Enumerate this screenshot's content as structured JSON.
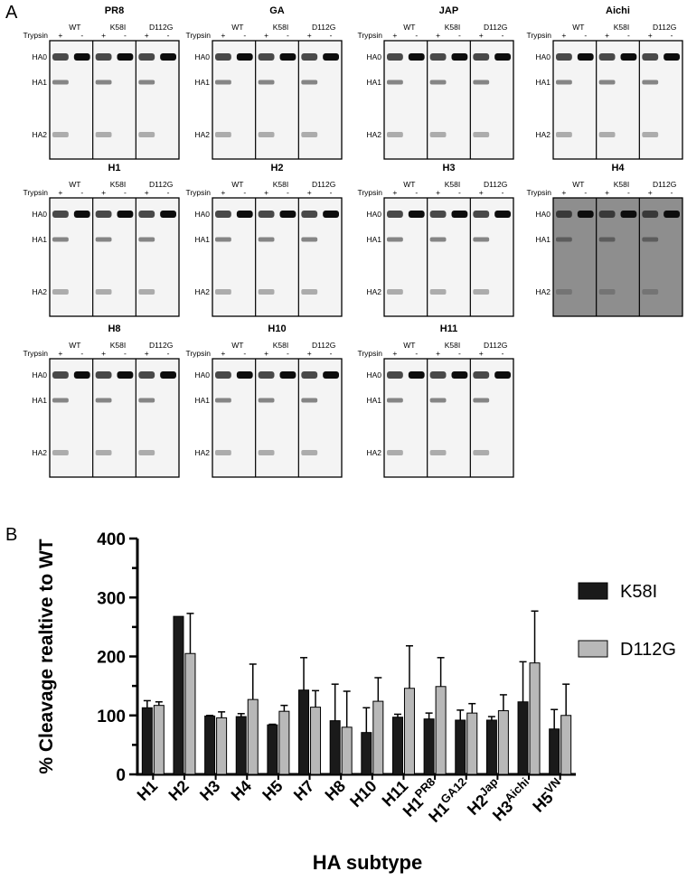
{
  "panel_a": {
    "letter": "A",
    "row_label": "Trypsin",
    "plus": "+",
    "minus": "-",
    "groups": [
      "WT",
      "K58I",
      "D112G"
    ],
    "gels": [
      {
        "title": "PR8",
        "bands": [
          "HA0",
          "HA1",
          "HA2"
        ],
        "dark": false
      },
      {
        "title": "GA",
        "bands": [
          "HA0",
          "HA1",
          "HA2"
        ],
        "dark": false
      },
      {
        "title": "JAP",
        "bands": [
          "HA0",
          "HA1",
          "HA2"
        ],
        "dark": false
      },
      {
        "title": "Aichi",
        "bands": [
          "HA0",
          "HA1",
          "HA2"
        ],
        "dark": false
      },
      {
        "title": "H1",
        "bands": [
          "HA0",
          "HA1",
          "HA2"
        ],
        "dark": false
      },
      {
        "title": "H2",
        "bands": [
          "HA0",
          "HA1",
          "HA2"
        ],
        "dark": false
      },
      {
        "title": "H3",
        "bands": [
          "HA0",
          "HA1",
          "HA2"
        ],
        "dark": false
      },
      {
        "title": "H4",
        "bands": [
          "HA0",
          "HA1",
          "HA2"
        ],
        "dark": true
      },
      {
        "title": "H8",
        "bands": [
          "HA0",
          "HA1",
          "HA2"
        ],
        "dark": false
      },
      {
        "title": "H10",
        "bands": [
          "HA0",
          "HA1",
          "HA2"
        ],
        "dark": false
      },
      {
        "title": "H11",
        "bands": [
          "HA0",
          "HA1",
          "HA2"
        ],
        "dark": false
      }
    ]
  },
  "panel_b": {
    "letter": "B"
  },
  "chart_data": {
    "type": "bar",
    "title": "",
    "ylabel": "% Cleavage realtive to WT",
    "xlabel": "HA subtype",
    "ylim": [
      0,
      400
    ],
    "yticks": [
      0,
      100,
      200,
      300,
      400
    ],
    "categories": [
      {
        "base": "H1",
        "sup": ""
      },
      {
        "base": "H2",
        "sup": ""
      },
      {
        "base": "H3",
        "sup": ""
      },
      {
        "base": "H4",
        "sup": ""
      },
      {
        "base": "H5",
        "sup": ""
      },
      {
        "base": "H7",
        "sup": ""
      },
      {
        "base": "H8",
        "sup": ""
      },
      {
        "base": "H10",
        "sup": ""
      },
      {
        "base": "H11",
        "sup": ""
      },
      {
        "base": "H1",
        "sup": "PR8"
      },
      {
        "base": "H1",
        "sup": "GA12"
      },
      {
        "base": "H2",
        "sup": "Jap"
      },
      {
        "base": "H3",
        "sup": "Aichi"
      },
      {
        "base": "H5",
        "sup": "VN"
      }
    ],
    "series": [
      {
        "name": "K58I",
        "color": "#1a1a1a",
        "values": [
          113,
          268,
          99,
          98,
          84,
          143,
          91,
          71,
          97,
          94,
          92,
          92,
          123,
          77
        ],
        "errors": [
          12,
          0,
          1,
          5,
          1,
          55,
          62,
          42,
          5,
          10,
          17,
          6,
          68,
          33
        ]
      },
      {
        "name": "D112G",
        "color": "#b8b8b8",
        "values": [
          117,
          205,
          96,
          127,
          107,
          114,
          80,
          124,
          146,
          149,
          104,
          108,
          189,
          100
        ],
        "errors": [
          6,
          68,
          10,
          60,
          10,
          28,
          61,
          40,
          72,
          49,
          16,
          27,
          88,
          53
        ]
      }
    ],
    "legend_position": "right",
    "grid": false
  }
}
